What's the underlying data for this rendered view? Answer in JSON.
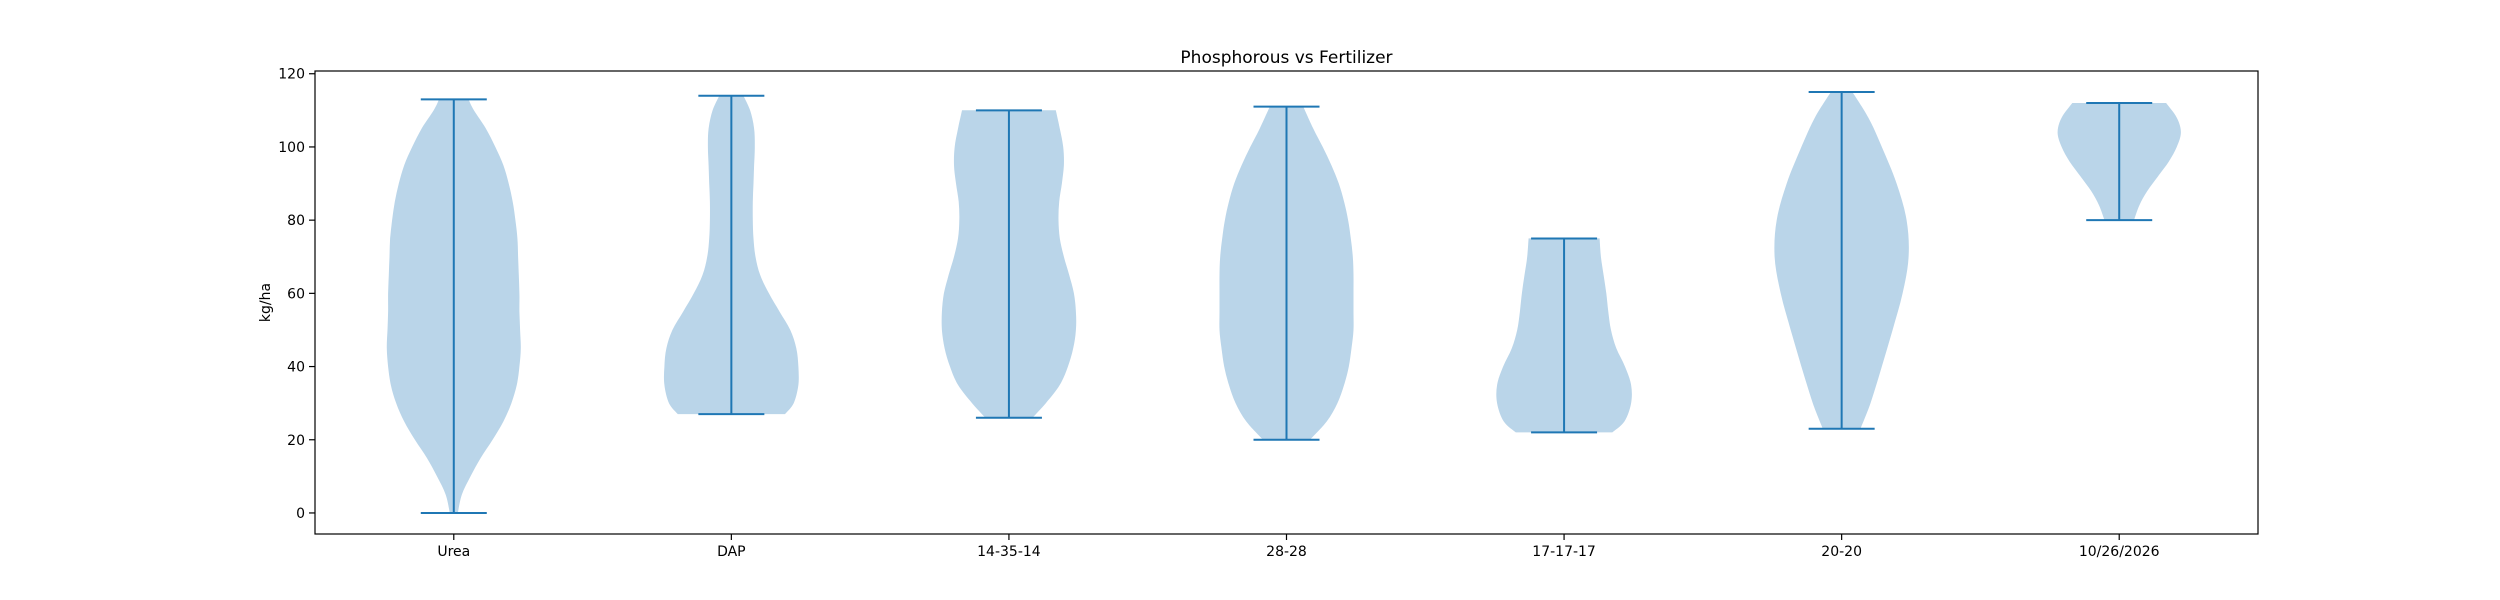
{
  "chart_data": {
    "type": "violin",
    "title": "Phosphorous vs Fertilizer",
    "xlabel": "",
    "ylabel": "kg/ha",
    "ylim": [
      -5.75,
      120.75
    ],
    "yticks": [
      0,
      20,
      40,
      60,
      80,
      100,
      120
    ],
    "categories": [
      "Urea",
      "DAP",
      "14-35-14",
      "28-28",
      "17-17-17",
      "20-20",
      "10/26/2026"
    ],
    "series": [
      {
        "category": "Urea",
        "min": 0,
        "max": 113,
        "profile": [
          [
            0,
            0.06
          ],
          [
            5,
            0.12
          ],
          [
            10,
            0.25
          ],
          [
            15,
            0.4
          ],
          [
            20,
            0.58
          ],
          [
            25,
            0.74
          ],
          [
            30,
            0.86
          ],
          [
            35,
            0.94
          ],
          [
            40,
            0.98
          ],
          [
            45,
            1.0
          ],
          [
            50,
            0.99
          ],
          [
            55,
            0.98
          ],
          [
            60,
            0.98
          ],
          [
            65,
            0.97
          ],
          [
            70,
            0.96
          ],
          [
            75,
            0.95
          ],
          [
            80,
            0.92
          ],
          [
            85,
            0.88
          ],
          [
            90,
            0.82
          ],
          [
            95,
            0.74
          ],
          [
            100,
            0.62
          ],
          [
            105,
            0.48
          ],
          [
            110,
            0.3
          ],
          [
            113,
            0.22
          ]
        ]
      },
      {
        "category": "DAP",
        "min": 27,
        "max": 114,
        "profile": [
          [
            27,
            0.8
          ],
          [
            30,
            0.93
          ],
          [
            35,
            1.0
          ],
          [
            40,
            1.0
          ],
          [
            45,
            0.97
          ],
          [
            50,
            0.88
          ],
          [
            55,
            0.72
          ],
          [
            60,
            0.56
          ],
          [
            65,
            0.43
          ],
          [
            70,
            0.36
          ],
          [
            75,
            0.33
          ],
          [
            80,
            0.32
          ],
          [
            85,
            0.32
          ],
          [
            90,
            0.33
          ],
          [
            95,
            0.34
          ],
          [
            100,
            0.35
          ],
          [
            105,
            0.34
          ],
          [
            110,
            0.28
          ],
          [
            114,
            0.18
          ]
        ]
      },
      {
        "category": "14-35-14",
        "min": 26,
        "max": 110,
        "profile": [
          [
            26,
            0.35
          ],
          [
            30,
            0.55
          ],
          [
            35,
            0.76
          ],
          [
            40,
            0.88
          ],
          [
            45,
            0.96
          ],
          [
            50,
            1.0
          ],
          [
            55,
            1.0
          ],
          [
            60,
            0.97
          ],
          [
            65,
            0.9
          ],
          [
            70,
            0.82
          ],
          [
            75,
            0.76
          ],
          [
            80,
            0.74
          ],
          [
            85,
            0.75
          ],
          [
            90,
            0.79
          ],
          [
            95,
            0.82
          ],
          [
            100,
            0.81
          ],
          [
            105,
            0.76
          ],
          [
            110,
            0.7
          ]
        ]
      },
      {
        "category": "28-28",
        "min": 20,
        "max": 111,
        "profile": [
          [
            20,
            0.35
          ],
          [
            25,
            0.6
          ],
          [
            30,
            0.76
          ],
          [
            35,
            0.86
          ],
          [
            40,
            0.93
          ],
          [
            45,
            0.97
          ],
          [
            50,
            1.0
          ],
          [
            55,
            1.0
          ],
          [
            60,
            1.0
          ],
          [
            65,
            1.0
          ],
          [
            70,
            0.99
          ],
          [
            75,
            0.96
          ],
          [
            80,
            0.92
          ],
          [
            85,
            0.86
          ],
          [
            90,
            0.78
          ],
          [
            95,
            0.67
          ],
          [
            100,
            0.54
          ],
          [
            105,
            0.4
          ],
          [
            111,
            0.25
          ]
        ]
      },
      {
        "category": "17-17-17",
        "min": 22,
        "max": 75,
        "profile": [
          [
            22,
            0.72
          ],
          [
            25,
            0.9
          ],
          [
            30,
            1.0
          ],
          [
            35,
            1.0
          ],
          [
            40,
            0.91
          ],
          [
            45,
            0.78
          ],
          [
            50,
            0.7
          ],
          [
            55,
            0.66
          ],
          [
            60,
            0.63
          ],
          [
            65,
            0.59
          ],
          [
            70,
            0.55
          ],
          [
            75,
            0.53
          ]
        ]
      },
      {
        "category": "20-20",
        "min": 23,
        "max": 115,
        "profile": [
          [
            23,
            0.28
          ],
          [
            30,
            0.43
          ],
          [
            40,
            0.6
          ],
          [
            50,
            0.76
          ],
          [
            60,
            0.91
          ],
          [
            70,
            1.0
          ],
          [
            80,
            0.97
          ],
          [
            90,
            0.82
          ],
          [
            100,
            0.6
          ],
          [
            108,
            0.4
          ],
          [
            115,
            0.16
          ]
        ]
      },
      {
        "category": "10/26/2026",
        "min": 80,
        "max": 112,
        "profile": [
          [
            80,
            0.22
          ],
          [
            84,
            0.3
          ],
          [
            88,
            0.42
          ],
          [
            92,
            0.58
          ],
          [
            96,
            0.74
          ],
          [
            100,
            0.86
          ],
          [
            104,
            0.92
          ],
          [
            108,
            0.86
          ],
          [
            112,
            0.7
          ]
        ]
      }
    ],
    "grid": false,
    "legend": "none",
    "colors": {
      "body": "#bad5e9",
      "line": "#1f77b4",
      "axis": "#000000"
    }
  }
}
